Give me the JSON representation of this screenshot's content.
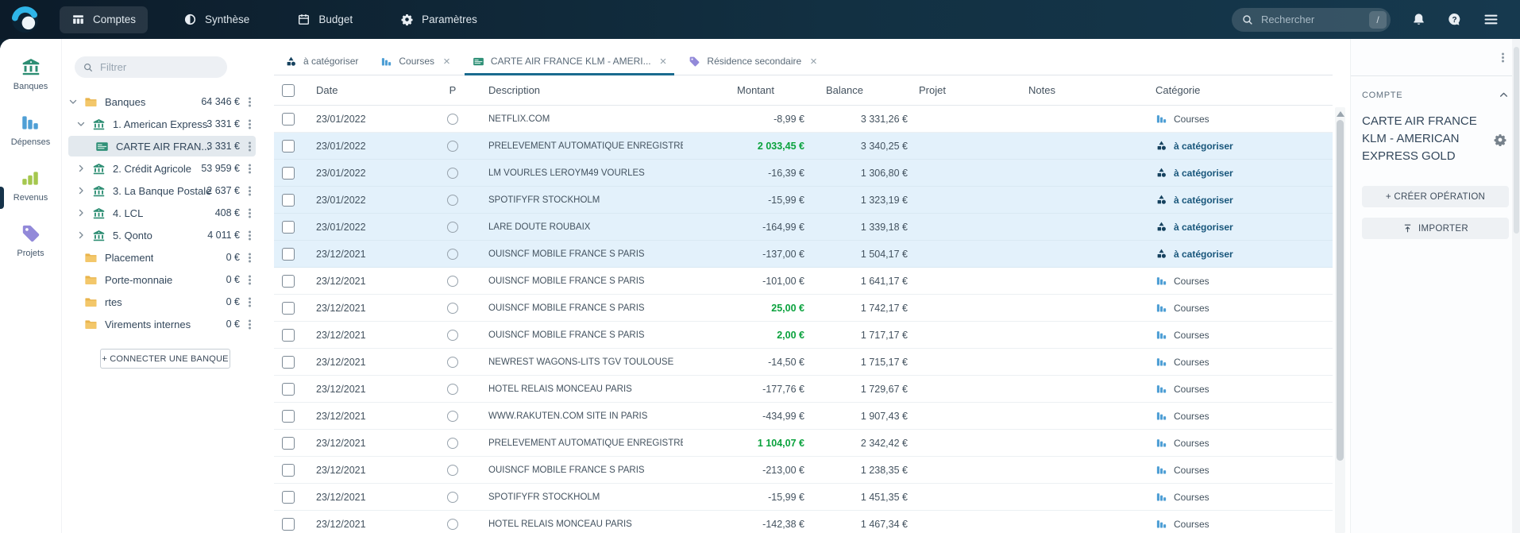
{
  "navbar": {
    "logo_icon": "logo-swirl-icon",
    "tabs": [
      {
        "label": "Comptes",
        "icon": "columns-icon",
        "active": true
      },
      {
        "label": "Synthèse",
        "icon": "pie-icon",
        "active": false
      },
      {
        "label": "Budget",
        "icon": "calendar-icon",
        "active": false
      },
      {
        "label": "Paramètres",
        "icon": "gear-icon",
        "active": false
      }
    ],
    "search": {
      "placeholder": "Rechercher",
      "shortcut": "/"
    },
    "action_icons": [
      "bell-icon",
      "help-icon",
      "menu-icon"
    ]
  },
  "sidebar": {
    "items": [
      {
        "label": "Banques",
        "icon": "bank-icon",
        "color": "#2d8e73"
      },
      {
        "label": "Dépenses",
        "icon": "bars-down-icon",
        "color": "#4f9fd5"
      },
      {
        "label": "Revenus",
        "icon": "bars-up-icon",
        "color": "#a5c74e"
      },
      {
        "label": "Projets",
        "icon": "tag-icon",
        "color": "#9289d9"
      }
    ]
  },
  "accounts_panel": {
    "filter_placeholder": "Filtrer",
    "tree": [
      {
        "label": "Banques",
        "amount": "64 346 €",
        "icon": "folder-icon",
        "color": "",
        "chevron": "down",
        "level": 0,
        "selected": false
      },
      {
        "label": "1. American Express",
        "amount": "3 331 €",
        "icon": "bank-icon",
        "color": "#2d8e73",
        "chevron": "down",
        "level": 1,
        "selected": false
      },
      {
        "label": "CARTE AIR FRAN...",
        "amount": "3 331 €",
        "icon": "card-icon",
        "color": "",
        "chevron": "none",
        "level": 2,
        "selected": true
      },
      {
        "label": "2. Crédit Agricole",
        "amount": "53 959 €",
        "icon": "bank-icon",
        "color": "#2d8e73",
        "chevron": "right",
        "level": 1,
        "selected": false
      },
      {
        "label": "3. La Banque Postale",
        "amount": "2 637 €",
        "icon": "bank-icon",
        "color": "#2d8e73",
        "chevron": "right",
        "level": 1,
        "selected": false
      },
      {
        "label": "4. LCL",
        "amount": "408 €",
        "icon": "bank-icon",
        "color": "#2d8e73",
        "chevron": "right",
        "level": 1,
        "selected": false
      },
      {
        "label": "5. Qonto",
        "amount": "4 011 €",
        "icon": "bank-icon",
        "color": "#2d8e73",
        "chevron": "right",
        "level": 1,
        "selected": false
      },
      {
        "label": "Placement",
        "amount": "0 €",
        "icon": "folder-icon",
        "color": "",
        "chevron": "none",
        "level": 0,
        "selected": false
      },
      {
        "label": "Porte-monnaie",
        "amount": "0 €",
        "icon": "folder-icon",
        "color": "",
        "chevron": "none",
        "level": 0,
        "selected": false
      },
      {
        "label": "rtes",
        "amount": "0 €",
        "icon": "folder-icon",
        "color": "",
        "chevron": "none",
        "level": 0,
        "selected": false
      },
      {
        "label": "Virements internes",
        "amount": "0 €",
        "icon": "folder-icon",
        "color": "",
        "chevron": "none",
        "level": 0,
        "selected": false
      }
    ],
    "connect_button": "+ CONNECTER UNE BANQUE"
  },
  "main": {
    "tabs": [
      {
        "label": "à catégoriser",
        "icon": "categorize-icon",
        "color": "#16425f",
        "closable": false,
        "active": false
      },
      {
        "label": "Courses",
        "icon": "courses-icon",
        "color": "#4f9fd5",
        "closable": true,
        "active": false
      },
      {
        "label": "CARTE AIR FRANCE KLM - AMERI...",
        "icon": "card-icon",
        "color": "",
        "closable": true,
        "active": true
      },
      {
        "label": "Résidence secondaire",
        "icon": "tag-icon",
        "color": "#9289d9",
        "closable": true,
        "active": false
      }
    ],
    "categories": {
      "courses": {
        "label": "Courses",
        "icon": "courses-icon",
        "color": "#4f9fd5",
        "uncategorized": false
      },
      "uncategorized": {
        "label": "à catégoriser",
        "icon": "categorize-icon",
        "color": "#16425f",
        "uncategorized": true
      }
    },
    "table": {
      "columns": [
        "Date",
        "P",
        "Description",
        "Montant",
        "Balance",
        "Projet",
        "Notes",
        "Catégorie"
      ],
      "rows": [
        {
          "date": "23/01/2022",
          "description": "NETFLIX.COM",
          "amount": "-8,99 €",
          "positive": false,
          "balance": "3 331,26 €",
          "category": "courses",
          "highlighted": false
        },
        {
          "date": "23/01/2022",
          "description": "PRELEVEMENT AUTOMATIQUE ENREGISTRE-MERCI",
          "amount": "2 033,45 €",
          "positive": true,
          "balance": "3 340,25 €",
          "category": "uncategorized",
          "highlighted": true
        },
        {
          "date": "23/01/2022",
          "description": "LM VOURLES LEROYM49 VOURLES",
          "amount": "-16,39 €",
          "positive": false,
          "balance": "1 306,80 €",
          "category": "uncategorized",
          "highlighted": true
        },
        {
          "date": "23/01/2022",
          "description": "SPOTIFYFR STOCKHOLM",
          "amount": "-15,99 €",
          "positive": false,
          "balance": "1 323,19 €",
          "category": "uncategorized",
          "highlighted": true
        },
        {
          "date": "23/01/2022",
          "description": "LARE DOUTE ROUBAIX",
          "amount": "-164,99 €",
          "positive": false,
          "balance": "1 339,18 €",
          "category": "uncategorized",
          "highlighted": true
        },
        {
          "date": "23/12/2021",
          "description": "OUISNCF MOBILE FRANCE S PARIS",
          "amount": "-137,00 €",
          "positive": false,
          "balance": "1 504,17 €",
          "category": "uncategorized",
          "highlighted": true
        },
        {
          "date": "23/12/2021",
          "description": "OUISNCF MOBILE FRANCE S PARIS",
          "amount": "-101,00 €",
          "positive": false,
          "balance": "1 641,17 €",
          "category": "courses",
          "highlighted": false
        },
        {
          "date": "23/12/2021",
          "description": "OUISNCF MOBILE FRANCE S PARIS",
          "amount": "25,00 €",
          "positive": true,
          "balance": "1 742,17 €",
          "category": "courses",
          "highlighted": false
        },
        {
          "date": "23/12/2021",
          "description": "OUISNCF MOBILE FRANCE S PARIS",
          "amount": "2,00 €",
          "positive": true,
          "balance": "1 717,17 €",
          "category": "courses",
          "highlighted": false
        },
        {
          "date": "23/12/2021",
          "description": "NEWREST WAGONS-LITS TGV TOULOUSE",
          "amount": "-14,50 €",
          "positive": false,
          "balance": "1 715,17 €",
          "category": "courses",
          "highlighted": false
        },
        {
          "date": "23/12/2021",
          "description": "HOTEL RELAIS MONCEAU PARIS",
          "amount": "-177,76 €",
          "positive": false,
          "balance": "1 729,67 €",
          "category": "courses",
          "highlighted": false
        },
        {
          "date": "23/12/2021",
          "description": "WWW.RAKUTEN.COM SITE IN PARIS",
          "amount": "-434,99 €",
          "positive": false,
          "balance": "1 907,43 €",
          "category": "courses",
          "highlighted": false
        },
        {
          "date": "23/12/2021",
          "description": "PRELEVEMENT AUTOMATIQUE ENREGISTRE-MERCI",
          "amount": "1 104,07 €",
          "positive": true,
          "balance": "2 342,42 €",
          "category": "courses",
          "highlighted": false
        },
        {
          "date": "23/12/2021",
          "description": "OUISNCF MOBILE FRANCE S PARIS",
          "amount": "-213,00 €",
          "positive": false,
          "balance": "1 238,35 €",
          "category": "courses",
          "highlighted": false
        },
        {
          "date": "23/12/2021",
          "description": "SPOTIFYFR STOCKHOLM",
          "amount": "-15,99 €",
          "positive": false,
          "balance": "1 451,35 €",
          "category": "courses",
          "highlighted": false
        },
        {
          "date": "23/12/2021",
          "description": "HOTEL RELAIS MONCEAU PARIS",
          "amount": "-142,38 €",
          "positive": false,
          "balance": "1 467,34 €",
          "category": "courses",
          "highlighted": false
        }
      ]
    }
  },
  "account_panel": {
    "title": "COMPTE",
    "account_name": "CARTE AIR FRANCE KLM - AMERICAN EXPRESS GOLD",
    "create_button": "+ CRÉER OPÉRATION",
    "import_button": "IMPORTER"
  },
  "colors": {
    "navbar_bg": "#123042",
    "active_tab_underline": "#1a6b8f",
    "highlight_row": "#e3f1fb",
    "positive_amount": "#0aa23d",
    "uncategorized_text": "#18567b"
  }
}
